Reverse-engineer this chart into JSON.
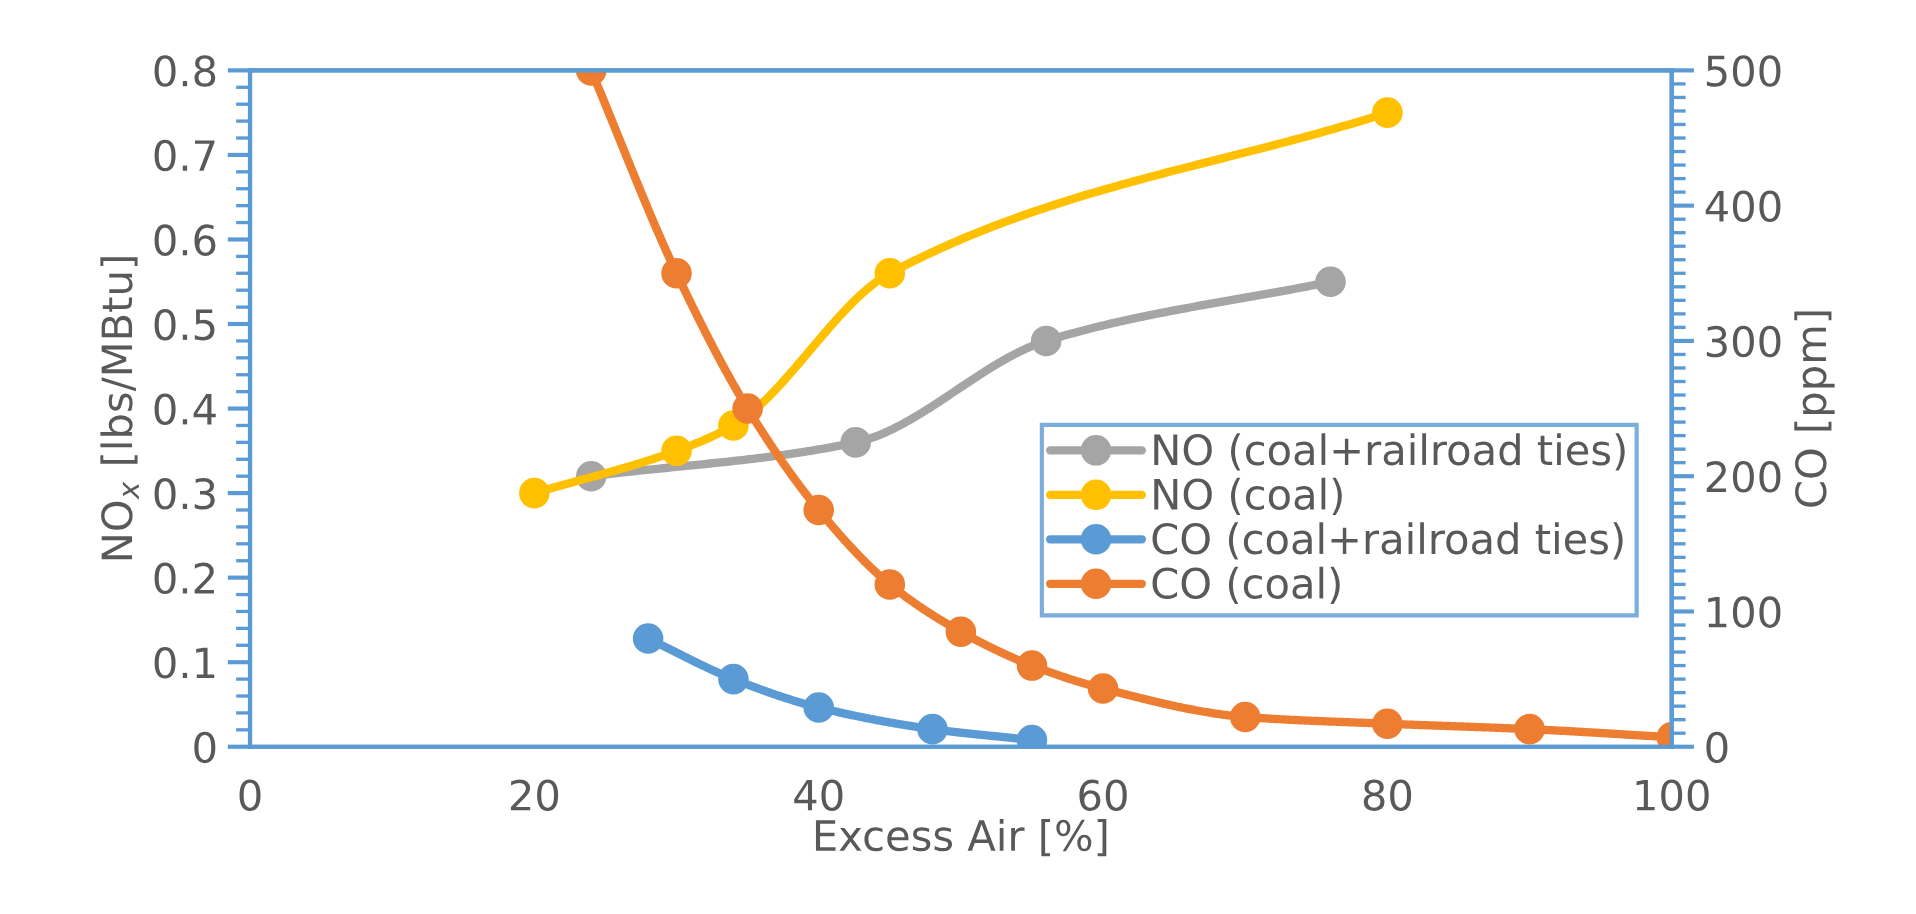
{
  "chart_data": {
    "type": "line",
    "xlabel": "Excess Air [%]",
    "ylabel": "NO$_{x}$ [lbs/MBtu]",
    "y2label": "CO [ppm]",
    "xlim": [
      0,
      100
    ],
    "xticks": [
      0,
      20,
      40,
      60,
      80,
      100
    ],
    "ylim": [
      0,
      0.8
    ],
    "yticks": [
      0,
      0.1,
      0.2,
      0.3,
      0.4,
      0.5,
      0.6,
      0.7,
      0.8
    ],
    "y2lim": [
      0,
      500
    ],
    "y2ticks": [
      0,
      100,
      200,
      300,
      400,
      500
    ],
    "marker": "circle",
    "line_style": "solid",
    "grid": false,
    "legend": "right",
    "series": [
      {
        "name": "NO (coal+railroad ties)",
        "color": "#a5a5a5",
        "x": [
          24,
          42.6,
          56,
          76
        ],
        "values": [
          0.32,
          0.36,
          0.48,
          0.55
        ]
      },
      {
        "name": "NO (coal)",
        "color": "#ffc000",
        "x": [
          20,
          30,
          34,
          45,
          80
        ],
        "values": [
          0.3,
          0.35,
          0.38,
          0.56,
          0.75
        ]
      },
      {
        "name": "CO (coal+railroad ties)",
        "color": "#5b9bd5",
        "axis": "y2",
        "x": [
          28,
          34,
          40,
          48,
          55
        ],
        "values": [
          80,
          50,
          29,
          13,
          5
        ]
      },
      {
        "name": "CO (coal)",
        "color": "#ed7d31",
        "axis": "y2",
        "x": [
          24,
          30,
          35,
          40,
          45,
          50,
          55,
          60,
          70,
          80,
          90,
          100
        ],
        "values": [
          500,
          350,
          250,
          175,
          120,
          85,
          60,
          43,
          22,
          17,
          13,
          7
        ]
      }
    ]
  }
}
